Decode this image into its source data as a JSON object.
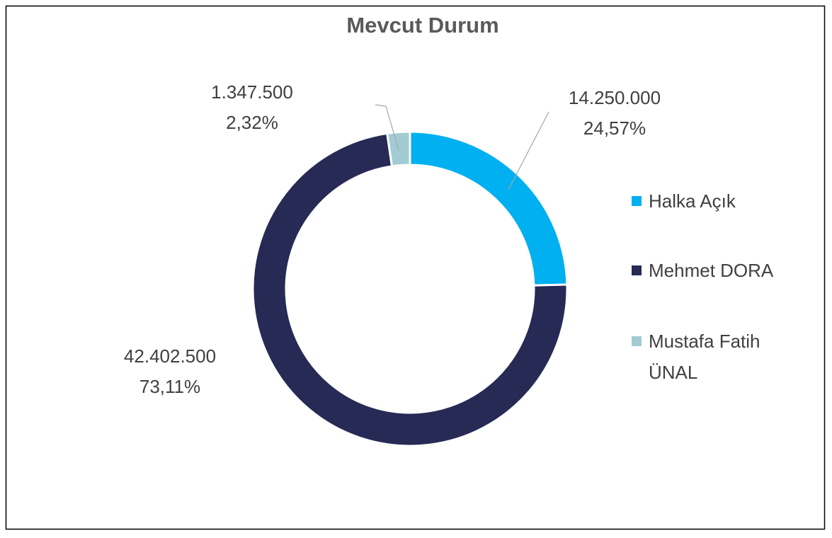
{
  "chart_data": {
    "type": "donut",
    "title": "Mevcut Durum",
    "categories": [
      "Halka Açık",
      "Mehmet DORA",
      "Mustafa Fatih ÜNAL"
    ],
    "values": [
      14250000,
      42402500,
      1347500
    ],
    "value_labels": [
      "14.250.000",
      "42.402.500",
      "1.347.500"
    ],
    "percents": [
      24.57,
      73.11,
      2.32
    ],
    "percent_labels": [
      "24,57%",
      "73,11%",
      "2,32%"
    ],
    "colors": [
      "#00b0f0",
      "#262a55",
      "#a2cbd3"
    ],
    "legend": "right"
  }
}
